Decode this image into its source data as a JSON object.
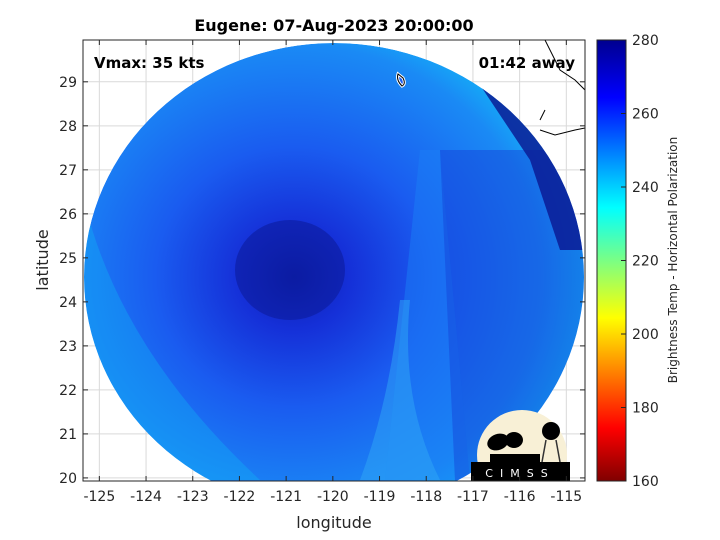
{
  "chart_data": {
    "type": "heatmap",
    "title": "Eugene: 07-Aug-2023 20:00:00",
    "xlabel": "longitude",
    "ylabel": "latitude",
    "xlim": [
      -125.35,
      -114.6
    ],
    "ylim": [
      19.93,
      29.95
    ],
    "xticks": [
      -125,
      -124,
      -123,
      -122,
      -121,
      -120,
      -119,
      -118,
      -117,
      -116,
      -115
    ],
    "yticks": [
      20,
      21,
      22,
      23,
      24,
      25,
      26,
      27,
      28,
      29
    ],
    "grid": true,
    "colorbar": {
      "label": "Brightness Temp - Horizontal Polarization",
      "range": [
        160,
        280
      ],
      "ticks": [
        160,
        180,
        200,
        220,
        240,
        260,
        280
      ],
      "colormap": "jet"
    },
    "storm_center": {
      "lon": -120.8,
      "lat": 24.9
    },
    "annotations": {
      "vmax": "Vmax: 35 kts",
      "time_away": "01:42 away"
    },
    "logo": "CIMSS"
  }
}
